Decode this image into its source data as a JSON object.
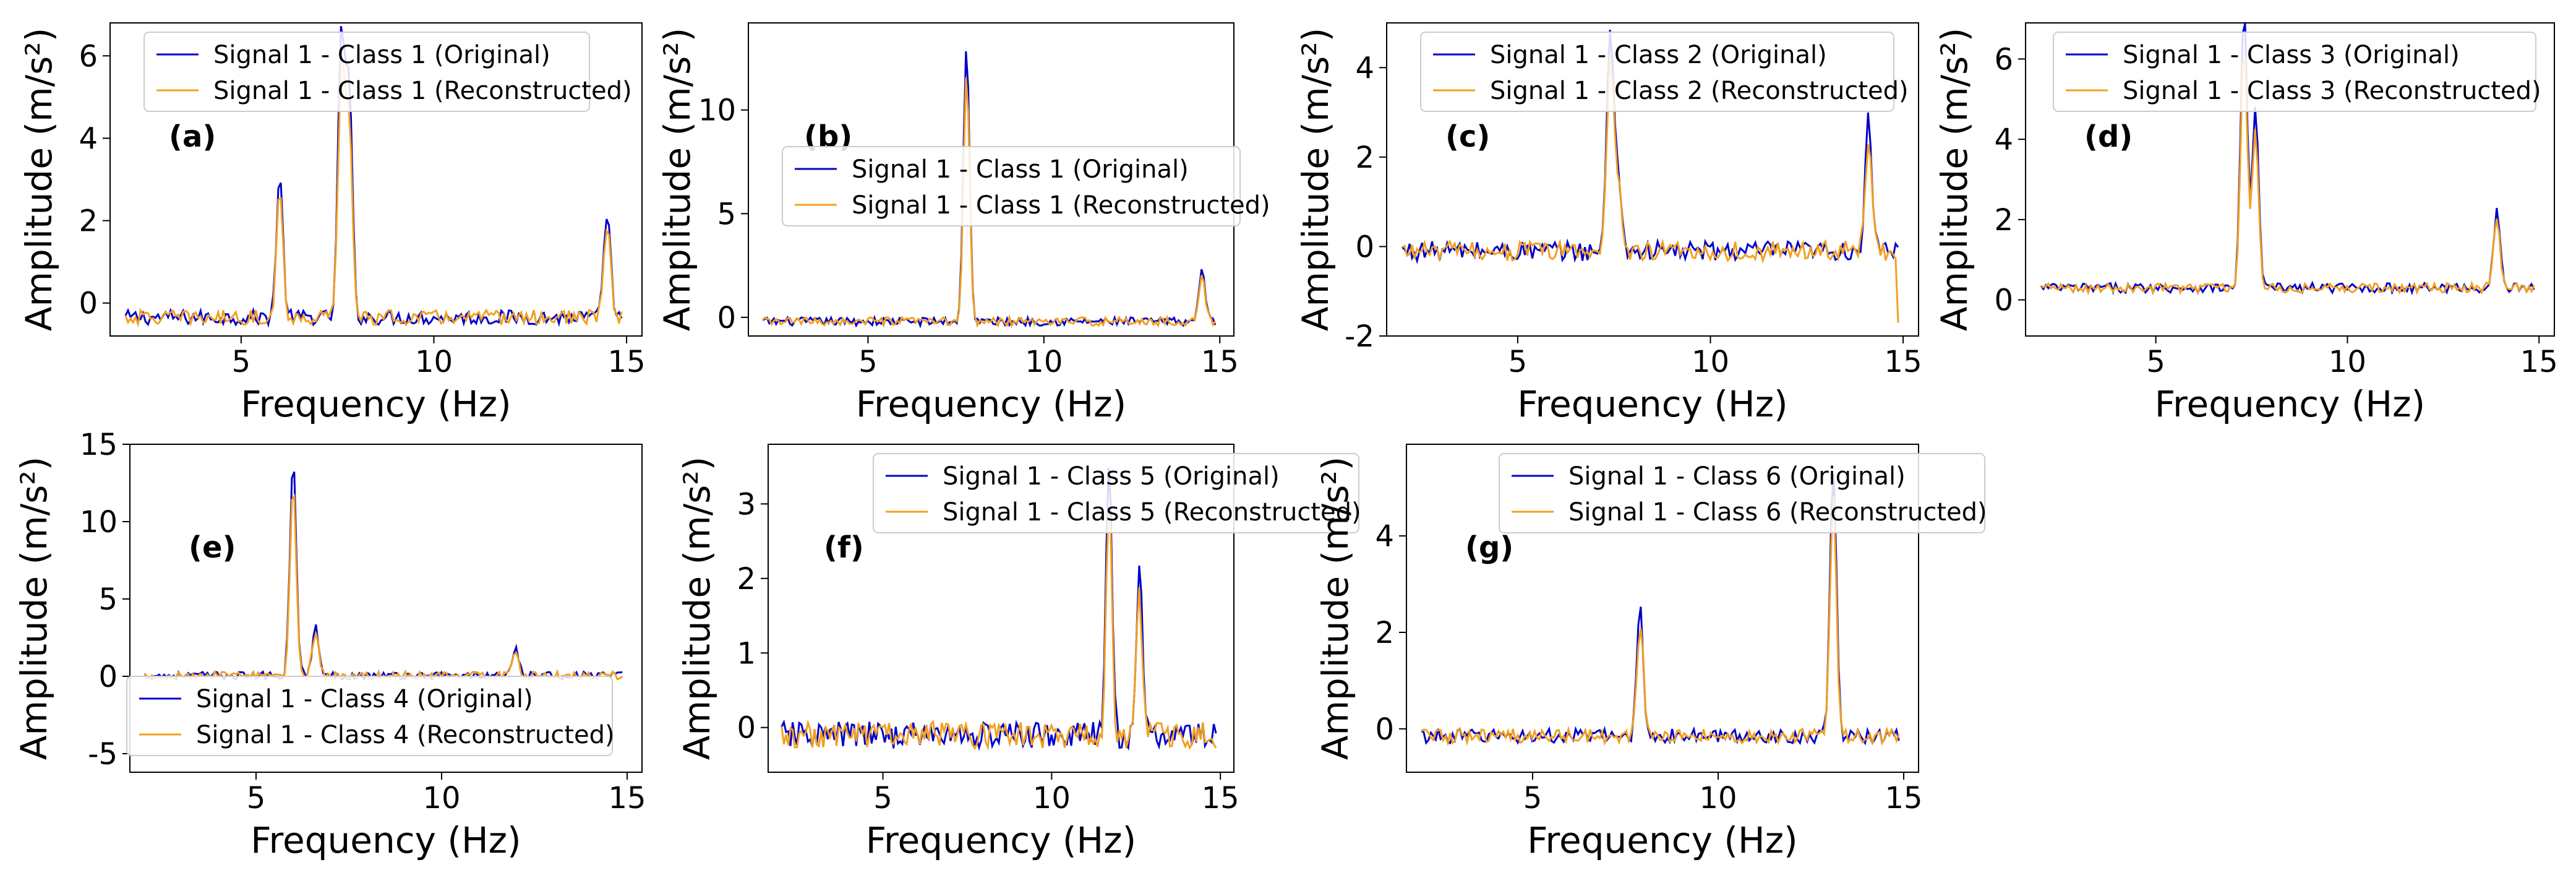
{
  "chart_data": [
    {
      "type": "line",
      "panel_label": "(a)",
      "xlabel": "Frequency (Hz)",
      "ylabel": "Amplitude (m/s²)",
      "xlim": [
        1.6,
        15.4
      ],
      "ylim": [
        -0.8,
        6.8
      ],
      "xticks": [
        5,
        10,
        15
      ],
      "yticks": [
        0,
        2,
        4,
        6
      ],
      "legend_position": "top-center",
      "peaks": [
        [
          6.0,
          3.4
        ],
        [
          7.6,
          6.8
        ],
        [
          7.8,
          5.5
        ],
        [
          14.5,
          2.6
        ]
      ],
      "series": [
        {
          "name": "Signal 1 - Class 1 (Original)",
          "color": "#0000cc"
        },
        {
          "name": "Signal 1 - Class 1 (Reconstructed)",
          "color": "#f2a01e"
        }
      ]
    },
    {
      "type": "line",
      "panel_label": "(b)",
      "xlabel": "Frequency (Hz)",
      "ylabel": "Amplitude (m/s²)",
      "xlim": [
        1.6,
        15.4
      ],
      "ylim": [
        -0.9,
        14.2
      ],
      "xticks": [
        5,
        10,
        15
      ],
      "yticks": [
        0,
        5,
        10
      ],
      "legend_position": "center",
      "peaks": [
        [
          7.8,
          13.4
        ],
        [
          14.5,
          2.6
        ]
      ],
      "series": [
        {
          "name": "Signal 1 - Class 1 (Original)",
          "color": "#0000cc"
        },
        {
          "name": "Signal 1 - Class 1 (Reconstructed)",
          "color": "#f2a01e"
        }
      ]
    },
    {
      "type": "line",
      "panel_label": "(c)",
      "xlabel": "Frequency (Hz)",
      "ylabel": "Amplitude (m/s²)",
      "xlim": [
        1.6,
        15.4
      ],
      "ylim": [
        -2.0,
        5.0
      ],
      "xticks": [
        5,
        10,
        15
      ],
      "yticks": [
        -2,
        0,
        2,
        4
      ],
      "legend_position": "top-center",
      "peaks": [
        [
          7.4,
          4.9
        ],
        [
          7.6,
          1.8
        ],
        [
          14.1,
          2.9
        ]
      ],
      "series": [
        {
          "name": "Signal 1 - Class 2 (Original)",
          "color": "#0000cc"
        },
        {
          "name": "Signal 1 - Class 2 (Reconstructed)",
          "color": "#f2a01e"
        }
      ]
    },
    {
      "type": "line",
      "panel_label": "(d)",
      "xlabel": "Frequency (Hz)",
      "ylabel": "Amplitude (m/s²)",
      "xlim": [
        1.6,
        15.4
      ],
      "ylim": [
        -0.9,
        6.9
      ],
      "xticks": [
        5,
        10,
        15
      ],
      "yticks": [
        0,
        2,
        4,
        6
      ],
      "legend_position": "top-center",
      "peaks": [
        [
          7.3,
          6.9
        ],
        [
          7.6,
          4.4
        ],
        [
          13.9,
          1.9
        ]
      ],
      "series": [
        {
          "name": "Signal 1 - Class 3 (Original)",
          "color": "#0000cc"
        },
        {
          "name": "Signal 1 - Class 3 (Reconstructed)",
          "color": "#f2a01e"
        }
      ]
    },
    {
      "type": "line",
      "panel_label": "(e)",
      "xlabel": "Frequency (Hz)",
      "ylabel": "Amplitude (m/s²)",
      "xlim": [
        1.6,
        15.4
      ],
      "ylim": [
        -6.2,
        15.0
      ],
      "xticks": [
        5,
        10,
        15
      ],
      "yticks": [
        -5,
        0,
        5,
        10,
        15
      ],
      "legend_position": "bottom-center",
      "peaks": [
        [
          6.0,
          14.0
        ],
        [
          6.6,
          3.2
        ],
        [
          12.0,
          1.6
        ]
      ],
      "series": [
        {
          "name": "Signal 1 - Class 4 (Original)",
          "color": "#0000cc"
        },
        {
          "name": "Signal 1 - Class 4 (Reconstructed)",
          "color": "#f2a01e"
        }
      ]
    },
    {
      "type": "line",
      "panel_label": "(f)",
      "xlabel": "Frequency (Hz)",
      "ylabel": "Amplitude (m/s²)",
      "xlim": [
        1.6,
        15.4
      ],
      "ylim": [
        -0.6,
        3.8
      ],
      "xticks": [
        5,
        10,
        15
      ],
      "yticks": [
        0,
        1,
        2,
        3
      ],
      "legend_position": "top-center",
      "peaks": [
        [
          11.7,
          3.6
        ],
        [
          12.6,
          2.2
        ]
      ],
      "series": [
        {
          "name": "Signal 1 - Class 5 (Original)",
          "color": "#0000cc"
        },
        {
          "name": "Signal 1 - Class 5 (Reconstructed)",
          "color": "#f2a01e"
        }
      ]
    },
    {
      "type": "line",
      "panel_label": "(g)",
      "xlabel": "Frequency (Hz)",
      "ylabel": "Amplitude (m/s²)",
      "xlim": [
        1.6,
        15.4
      ],
      "ylim": [
        -0.9,
        5.9
      ],
      "xticks": [
        5,
        10,
        15
      ],
      "yticks": [
        0,
        2,
        4
      ],
      "legend_position": "top-center",
      "peaks": [
        [
          7.9,
          2.7
        ],
        [
          13.1,
          5.6
        ]
      ],
      "series": [
        {
          "name": "Signal 1 - Class 6 (Original)",
          "color": "#0000cc"
        },
        {
          "name": "Signal 1 - Class 6 (Reconstructed)",
          "color": "#f2a01e"
        }
      ]
    }
  ]
}
